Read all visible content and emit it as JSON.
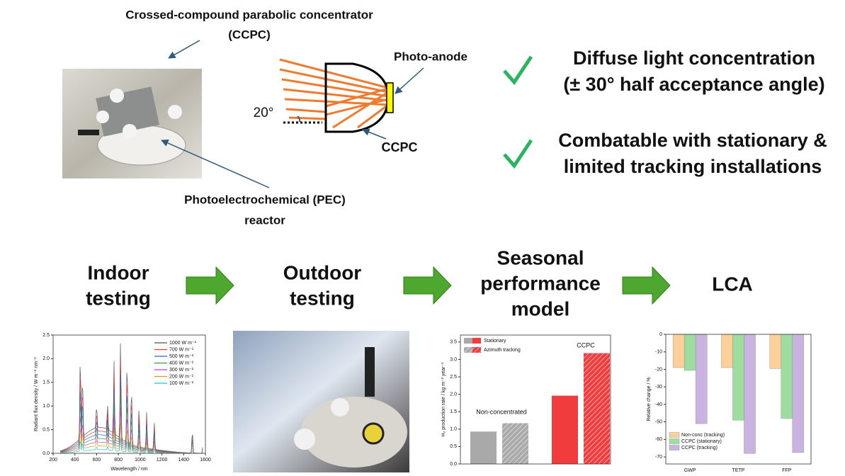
{
  "top": {
    "concentrator_label": [
      "Crossed-compound parabolic concentrator",
      "(CCPC)"
    ],
    "angle": "20°",
    "photo_anode": "Photo-anode",
    "ccpc": "CCPC",
    "reactor_label": [
      "Photoelectrochemical (PEC)",
      "reactor"
    ]
  },
  "benefits": [
    [
      "Diffuse light concentration",
      "(± 30° half acceptance angle)"
    ],
    [
      "Combatable with stationary &",
      "limited tracking installations"
    ]
  ],
  "workflow": [
    [
      "Indoor",
      "testing"
    ],
    [
      "Outdoor",
      "testing"
    ],
    [
      "Seasonal",
      "performance",
      "model"
    ],
    [
      "LCA"
    ]
  ],
  "charts": [
    {
      "type": "spectrum",
      "xlabel": "Wavelength / nm",
      "ylabel": "Radiant flux density / W m⁻² nm⁻¹",
      "xlim": [
        200,
        1600
      ],
      "ylim": [
        0,
        2.5
      ],
      "xticks": [
        200,
        400,
        600,
        800,
        1000,
        1200,
        1400,
        1600
      ],
      "yticks": [
        {
          "value": 0,
          "label": "0.0"
        },
        {
          "value": 0.5,
          "label": "0.5"
        },
        {
          "value": 1,
          "label": "1.0"
        },
        {
          "value": 1.5,
          "label": "1.5"
        },
        {
          "value": 2,
          "label": "2.0"
        },
        {
          "value": 2.5,
          "label": "2.5"
        }
      ],
      "series": [
        {
          "name": "1000 W m⁻²",
          "color": "#555555"
        },
        {
          "name": "700 W m⁻²",
          "color": "#e8363a"
        },
        {
          "name": "500 W m⁻²",
          "color": "#2f5fd0"
        },
        {
          "name": "400 W m⁻²",
          "color": "#2e9e4a"
        },
        {
          "name": "300 W m⁻²",
          "color": "#c248c8"
        },
        {
          "name": "200 W m⁻²",
          "color": "#d4a017"
        },
        {
          "name": "100 W m⁻²",
          "color": "#20c4d4"
        }
      ]
    },
    {
      "type": "bar",
      "ylabel": "H₂ production rate / kg m⁻² year⁻¹",
      "ylim": [
        0,
        3.7
      ],
      "yticks": [
        {
          "value": 0,
          "label": "0.0"
        },
        {
          "value": 0.5,
          "label": "0.5"
        },
        {
          "value": 1,
          "label": "1.0"
        },
        {
          "value": 1.5,
          "label": "1.5"
        },
        {
          "value": 2,
          "label": "2.0"
        },
        {
          "value": 2.5,
          "label": "2.5"
        },
        {
          "value": 3,
          "label": "3.0"
        },
        {
          "value": 3.5,
          "label": "3.5"
        }
      ],
      "groups": [
        "Non-concentrated",
        "CCPC"
      ],
      "group_colors": [
        "#a9a9a9",
        "#f03c3c"
      ],
      "series": [
        {
          "name": "Stationary",
          "values": [
            0.93,
            1.96
          ]
        },
        {
          "name": "Azimuth tracking",
          "values": [
            1.17,
            3.18
          ],
          "hatched": true
        }
      ]
    },
    {
      "type": "bar",
      "ylabel": "Relative change / %",
      "ylim": [
        -74,
        0
      ],
      "yticks": [
        0,
        -10,
        -20,
        -30,
        -40,
        -50,
        -60,
        -70
      ],
      "categories": [
        "GWP",
        "TETP",
        "FFP"
      ],
      "series": [
        {
          "name": "Non-conc (tracking)",
          "color": "#fdd09a",
          "values": [
            -19,
            -19,
            -19.5
          ]
        },
        {
          "name": "CCPC (stationary)",
          "color": "#9fdc9f",
          "values": [
            -20.5,
            -49,
            -48
          ]
        },
        {
          "name": "CCPC (tracking)",
          "color": "#c9b3e0",
          "values": [
            -51,
            -68,
            -67.5
          ]
        }
      ]
    }
  ]
}
